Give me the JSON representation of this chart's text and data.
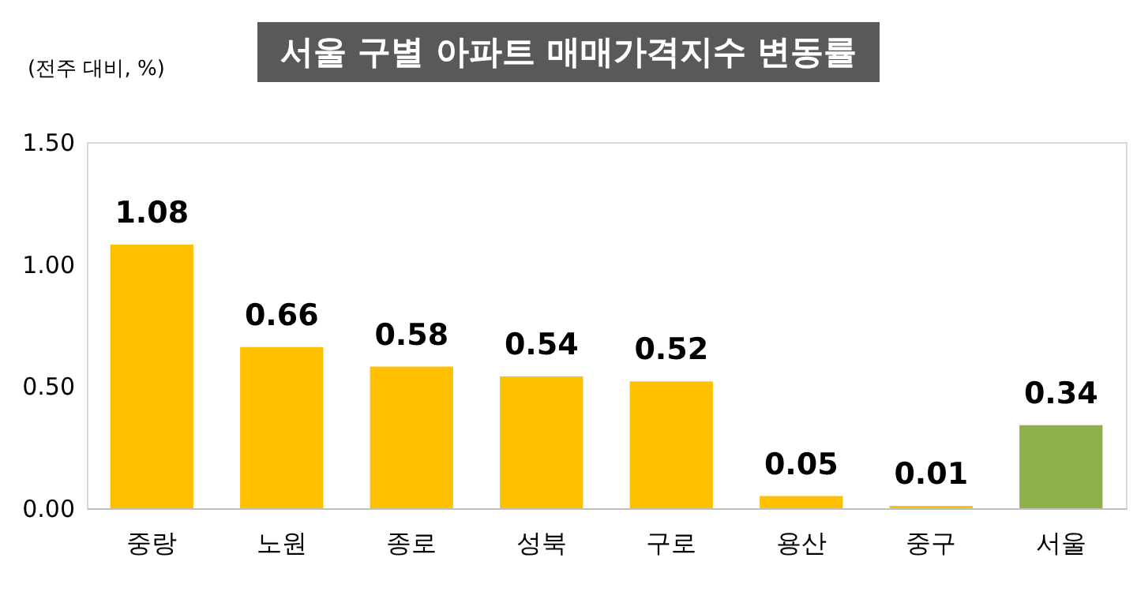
{
  "chart_data": {
    "type": "bar",
    "title": "서울 구별 아파트 매매가격지수 변동률",
    "ylabel": "(전주 대비, %)",
    "categories": [
      "중랑",
      "노원",
      "종로",
      "성북",
      "구로",
      "용산",
      "중구",
      "서울"
    ],
    "values": [
      1.08,
      0.66,
      0.58,
      0.54,
      0.52,
      0.05,
      0.01,
      0.34
    ],
    "colors": [
      "#ffc000",
      "#ffc000",
      "#ffc000",
      "#ffc000",
      "#ffc000",
      "#ffc000",
      "#ffc000",
      "#8db04b"
    ],
    "ylim": [
      0,
      1.5
    ],
    "yticks": [
      {
        "value": 0,
        "label": "0.00"
      },
      {
        "value": 0.5,
        "label": "0.50"
      },
      {
        "value": 1,
        "label": "1.00"
      },
      {
        "value": 1.5,
        "label": "1.50"
      }
    ],
    "data_labels": true
  }
}
